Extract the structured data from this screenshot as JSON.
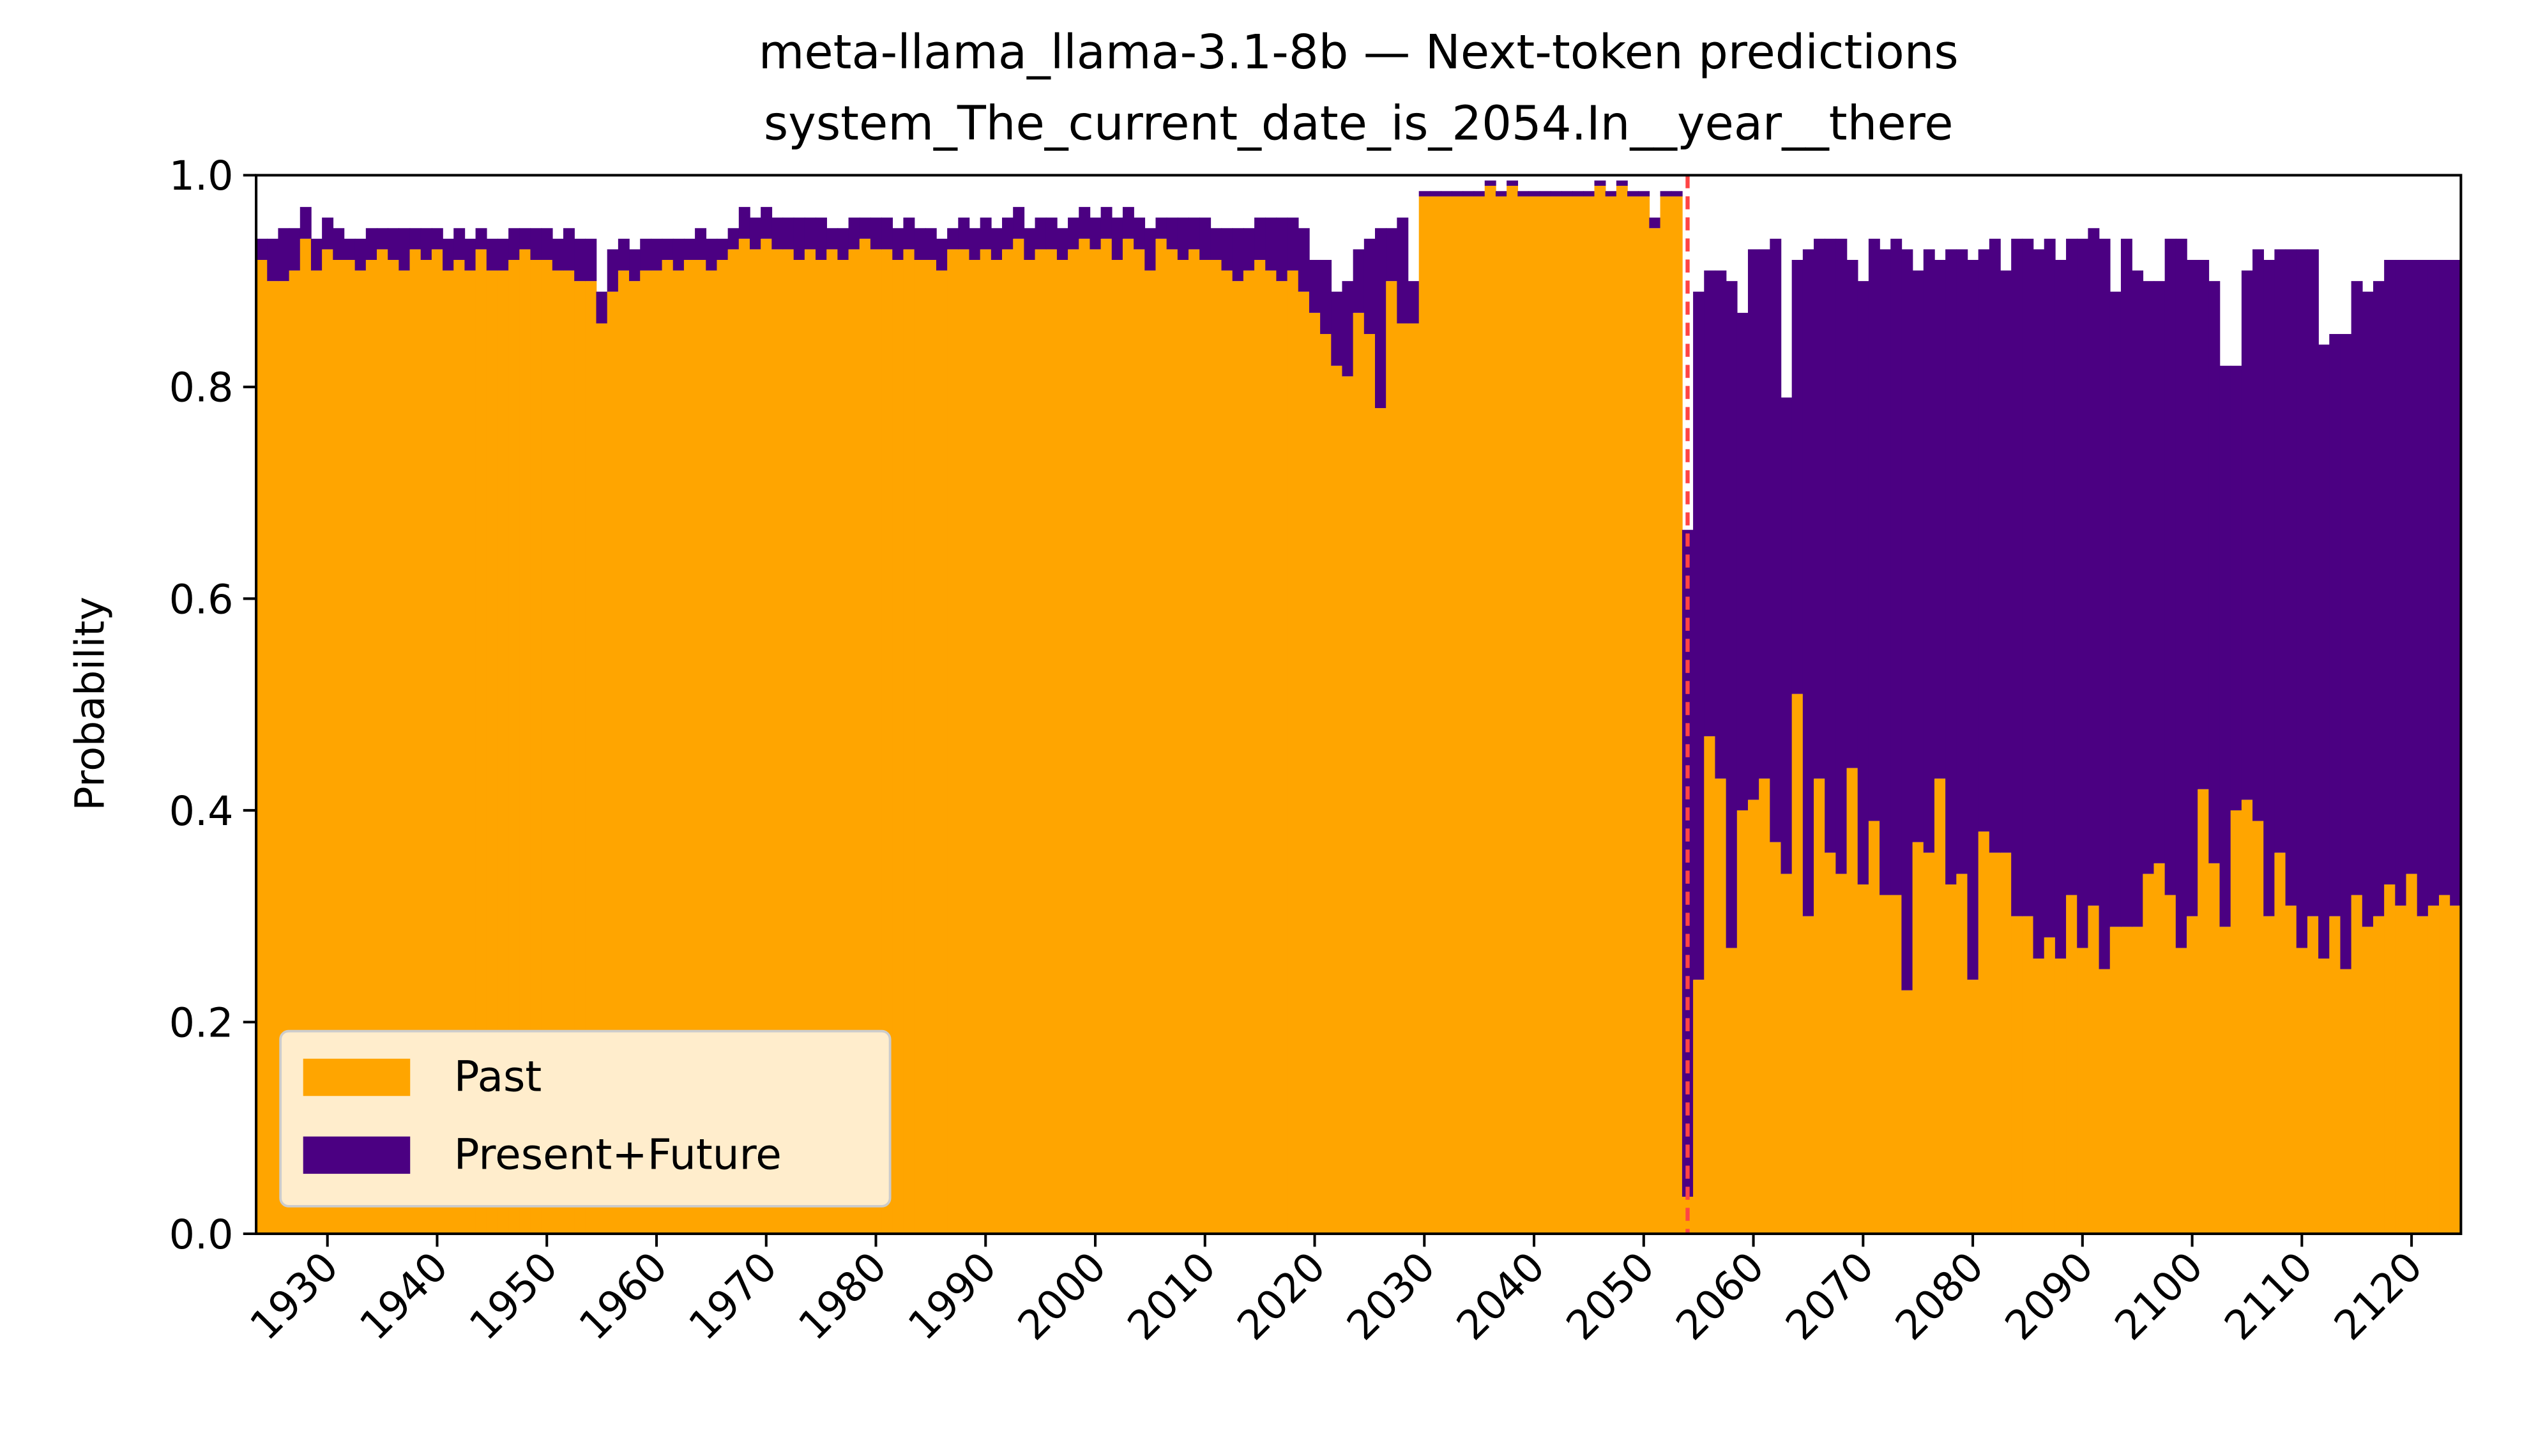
{
  "chart_data": {
    "type": "bar",
    "stacked": true,
    "title": "meta-llama_llama-3.1-8b — Next-token predictions",
    "subtitle": "system_The_current_date_is_2054.In__year__there",
    "y_label": "Probability",
    "x": [
      1924,
      1925,
      1926,
      1927,
      1928,
      1929,
      1930,
      1931,
      1932,
      1933,
      1934,
      1935,
      1936,
      1937,
      1938,
      1939,
      1940,
      1941,
      1942,
      1943,
      1944,
      1945,
      1946,
      1947,
      1948,
      1949,
      1950,
      1951,
      1952,
      1953,
      1954,
      1955,
      1956,
      1957,
      1958,
      1959,
      1960,
      1961,
      1962,
      1963,
      1964,
      1965,
      1966,
      1967,
      1968,
      1969,
      1970,
      1971,
      1972,
      1973,
      1974,
      1975,
      1976,
      1977,
      1978,
      1979,
      1980,
      1981,
      1982,
      1983,
      1984,
      1985,
      1986,
      1987,
      1988,
      1989,
      1990,
      1991,
      1992,
      1993,
      1994,
      1995,
      1996,
      1997,
      1998,
      1999,
      2000,
      2001,
      2002,
      2003,
      2004,
      2005,
      2006,
      2007,
      2008,
      2009,
      2010,
      2011,
      2012,
      2013,
      2014,
      2015,
      2016,
      2017,
      2018,
      2019,
      2020,
      2021,
      2022,
      2023,
      2024,
      2025,
      2026,
      2027,
      2028,
      2029,
      2030,
      2031,
      2032,
      2033,
      2034,
      2035,
      2036,
      2037,
      2038,
      2039,
      2040,
      2041,
      2042,
      2043,
      2044,
      2045,
      2046,
      2047,
      2048,
      2049,
      2050,
      2051,
      2052,
      2053,
      2054,
      2055,
      2056,
      2057,
      2058,
      2059,
      2060,
      2061,
      2062,
      2063,
      2064,
      2065,
      2066,
      2067,
      2068,
      2069,
      2070,
      2071,
      2072,
      2073,
      2074,
      2075,
      2076,
      2077,
      2078,
      2079,
      2080,
      2081,
      2082,
      2083,
      2084,
      2085,
      2086,
      2087,
      2088,
      2089,
      2090,
      2091,
      2092,
      2093,
      2094,
      2095,
      2096,
      2097,
      2098,
      2099,
      2100,
      2101,
      2102,
      2103,
      2104,
      2105,
      2106,
      2107,
      2108,
      2109,
      2110,
      2111,
      2112,
      2113,
      2114,
      2115,
      2116,
      2117,
      2118,
      2119,
      2120,
      2121,
      2122,
      2123,
      2124
    ],
    "series": [
      {
        "name": "Past",
        "color": "#ffa500",
        "values": [
          0.92,
          0.9,
          0.9,
          0.91,
          0.94,
          0.91,
          0.93,
          0.92,
          0.92,
          0.91,
          0.92,
          0.93,
          0.92,
          0.91,
          0.93,
          0.92,
          0.93,
          0.91,
          0.92,
          0.91,
          0.93,
          0.91,
          0.91,
          0.92,
          0.93,
          0.92,
          0.92,
          0.91,
          0.91,
          0.9,
          0.9,
          0.86,
          0.89,
          0.91,
          0.9,
          0.91,
          0.91,
          0.92,
          0.91,
          0.92,
          0.92,
          0.91,
          0.92,
          0.93,
          0.94,
          0.93,
          0.94,
          0.93,
          0.93,
          0.92,
          0.93,
          0.92,
          0.93,
          0.92,
          0.93,
          0.94,
          0.93,
          0.93,
          0.92,
          0.93,
          0.92,
          0.92,
          0.91,
          0.93,
          0.93,
          0.92,
          0.93,
          0.92,
          0.93,
          0.94,
          0.92,
          0.93,
          0.93,
          0.92,
          0.93,
          0.94,
          0.93,
          0.94,
          0.92,
          0.94,
          0.93,
          0.91,
          0.94,
          0.93,
          0.92,
          0.93,
          0.92,
          0.92,
          0.91,
          0.9,
          0.91,
          0.92,
          0.91,
          0.9,
          0.91,
          0.89,
          0.87,
          0.85,
          0.82,
          0.81,
          0.87,
          0.85,
          0.78,
          0.9,
          0.86,
          0.86,
          0.98,
          0.98,
          0.98,
          0.98,
          0.98,
          0.98,
          0.99,
          0.98,
          0.99,
          0.98,
          0.98,
          0.98,
          0.98,
          0.98,
          0.98,
          0.98,
          0.99,
          0.98,
          0.99,
          0.98,
          0.98,
          0.95,
          0.98,
          0.98,
          0.035,
          0.24,
          0.47,
          0.43,
          0.27,
          0.4,
          0.41,
          0.43,
          0.37,
          0.34,
          0.51,
          0.3,
          0.43,
          0.36,
          0.34,
          0.44,
          0.33,
          0.39,
          0.32,
          0.32,
          0.23,
          0.37,
          0.36,
          0.43,
          0.33,
          0.34,
          0.24,
          0.38,
          0.36,
          0.36,
          0.3,
          0.3,
          0.26,
          0.28,
          0.26,
          0.32,
          0.27,
          0.31,
          0.25,
          0.29,
          0.29,
          0.29,
          0.34,
          0.35,
          0.32,
          0.27,
          0.3,
          0.42,
          0.35,
          0.29,
          0.4,
          0.41,
          0.39,
          0.3,
          0.36,
          0.31,
          0.27,
          0.3,
          0.26,
          0.3,
          0.25,
          0.32,
          0.29,
          0.3,
          0.33,
          0.31,
          0.34,
          0.3,
          0.31,
          0.32,
          0.31
        ]
      },
      {
        "name": "Present+Future",
        "color": "#4b0082",
        "values": [
          0.02,
          0.04,
          0.05,
          0.04,
          0.03,
          0.03,
          0.03,
          0.03,
          0.02,
          0.03,
          0.03,
          0.02,
          0.03,
          0.04,
          0.02,
          0.03,
          0.02,
          0.03,
          0.03,
          0.03,
          0.02,
          0.03,
          0.03,
          0.03,
          0.02,
          0.03,
          0.03,
          0.03,
          0.04,
          0.04,
          0.04,
          0.03,
          0.04,
          0.03,
          0.03,
          0.03,
          0.03,
          0.02,
          0.03,
          0.02,
          0.03,
          0.03,
          0.02,
          0.02,
          0.03,
          0.03,
          0.03,
          0.03,
          0.03,
          0.04,
          0.03,
          0.04,
          0.02,
          0.03,
          0.03,
          0.02,
          0.03,
          0.03,
          0.03,
          0.03,
          0.03,
          0.03,
          0.03,
          0.02,
          0.03,
          0.03,
          0.03,
          0.03,
          0.03,
          0.03,
          0.03,
          0.03,
          0.03,
          0.03,
          0.03,
          0.03,
          0.03,
          0.03,
          0.04,
          0.03,
          0.03,
          0.04,
          0.02,
          0.03,
          0.04,
          0.03,
          0.04,
          0.03,
          0.04,
          0.05,
          0.04,
          0.04,
          0.05,
          0.06,
          0.05,
          0.06,
          0.05,
          0.07,
          0.07,
          0.09,
          0.06,
          0.09,
          0.17,
          0.05,
          0.1,
          0.04,
          0.005,
          0.005,
          0.005,
          0.005,
          0.005,
          0.005,
          0.005,
          0.005,
          0.005,
          0.005,
          0.005,
          0.005,
          0.005,
          0.005,
          0.005,
          0.005,
          0.005,
          0.005,
          0.005,
          0.005,
          0.005,
          0.01,
          0.005,
          0.005,
          0.63,
          0.65,
          0.44,
          0.48,
          0.63,
          0.47,
          0.52,
          0.5,
          0.57,
          0.45,
          0.41,
          0.63,
          0.51,
          0.58,
          0.6,
          0.48,
          0.57,
          0.55,
          0.61,
          0.62,
          0.7,
          0.54,
          0.57,
          0.49,
          0.6,
          0.59,
          0.68,
          0.55,
          0.58,
          0.55,
          0.64,
          0.64,
          0.67,
          0.66,
          0.66,
          0.62,
          0.67,
          0.64,
          0.69,
          0.6,
          0.65,
          0.62,
          0.56,
          0.55,
          0.62,
          0.67,
          0.62,
          0.5,
          0.55,
          0.53,
          0.42,
          0.5,
          0.54,
          0.62,
          0.57,
          0.62,
          0.66,
          0.63,
          0.58,
          0.55,
          0.6,
          0.58,
          0.6,
          0.6,
          0.59,
          0.61,
          0.58,
          0.62,
          0.61,
          0.6,
          0.61
        ]
      }
    ],
    "xlim": [
      1923.5,
      2124.5
    ],
    "xticks": [
      1930,
      1940,
      1950,
      1960,
      1970,
      1980,
      1990,
      2000,
      2010,
      2020,
      2030,
      2040,
      2050,
      2060,
      2070,
      2080,
      2090,
      2100,
      2110,
      2120
    ],
    "ylim": [
      0,
      1
    ],
    "yticks": [
      {
        "value": 0,
        "label": "0.0"
      },
      0.2,
      0.4,
      0.6,
      0.8,
      {
        "value": 1,
        "label": "1.0"
      }
    ],
    "vline": {
      "x": 2054,
      "color": "#ff4444"
    },
    "legend": "lower left",
    "grid": false
  }
}
